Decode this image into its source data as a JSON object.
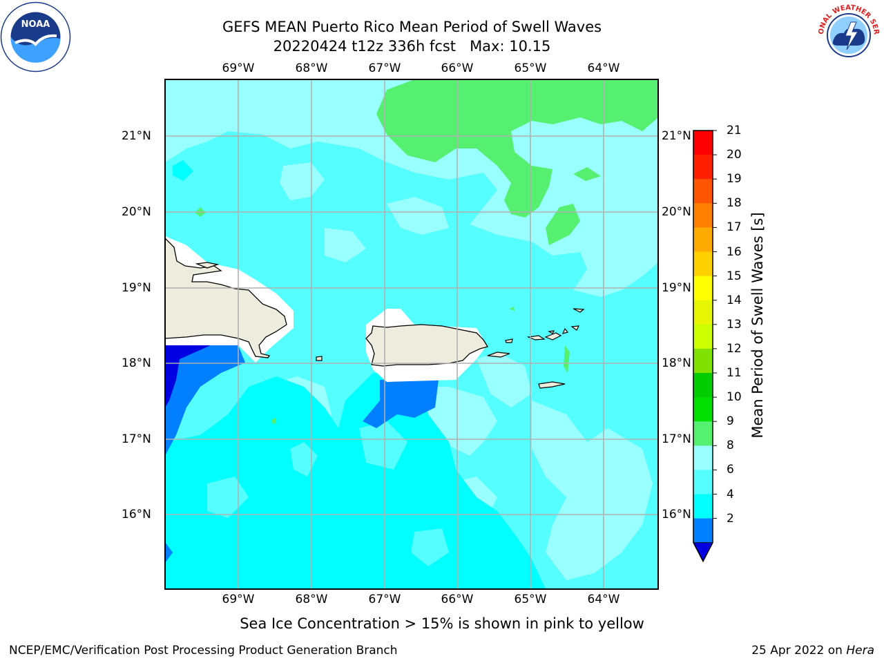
{
  "title": "GEFS MEAN Puerto Rico Mean Period of Swell Waves",
  "subtitle": "20220424 t12z 336h fcst   Max: 10.15",
  "map": {
    "lon_labels": [
      "69°W",
      "68°W",
      "67°W",
      "66°W",
      "65°W",
      "64°W"
    ],
    "lat_labels": [
      "21°N",
      "20°N",
      "19°N",
      "18°N",
      "17°N",
      "16°N"
    ],
    "land_color": "#eeecdc",
    "grid_color": "#b0b0b0"
  },
  "colorbar": {
    "label": "Mean Period of Swell Waves [s]",
    "ticks": [
      "21",
      "20",
      "19",
      "18",
      "17",
      "16",
      "15",
      "14",
      "13",
      "12",
      "11",
      "10",
      "9",
      "8",
      "6",
      "4",
      "2"
    ],
    "colors": [
      "#ff0000",
      "#ff2000",
      "#ff5500",
      "#ff8000",
      "#ffaa00",
      "#ffd000",
      "#ffff00",
      "#e6f500",
      "#ccff00",
      "#80e000",
      "#00cc00",
      "#00e000",
      "#55f070",
      "#99ffff",
      "#55ffff",
      "#00ffff",
      "#0080ff"
    ],
    "extend_color": "#0000e0"
  },
  "note": "Sea Ice Concentration > 15% is shown in pink to yellow",
  "footer": {
    "left": "NCEP/EMC/Verification Post Processing Product Generation Branch",
    "date": "25 Apr 2022 on ",
    "machine": "Hera"
  },
  "logos": {
    "noaa_text": "NOAA",
    "nws_text": "NATIONAL WEATHER SERVICE"
  }
}
